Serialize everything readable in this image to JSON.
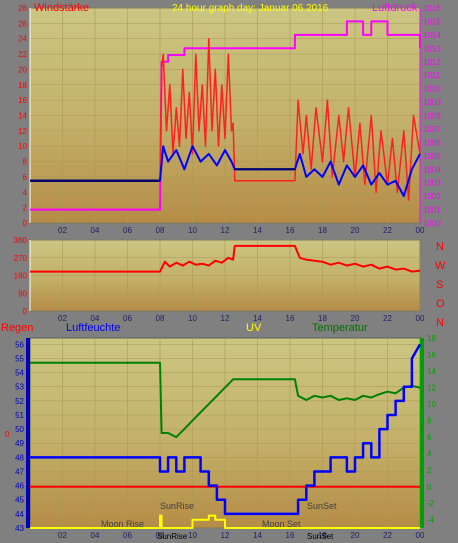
{
  "header": {
    "title": "24 hour graph day: Januar 06 2016",
    "left_label": "Windstärke",
    "right_label": "Luftdruck"
  },
  "wind_dir_labels": [
    "N",
    "W",
    "S",
    "O",
    "N"
  ],
  "bottom_labels": {
    "regen": "Regen",
    "luftfeuchte": "Luftfeuchte",
    "uv": "UV",
    "temperatur": "Temperatur"
  },
  "annotations": {
    "sunrise": "SunRise",
    "sunset": "SunSet",
    "moonrise": "Moon Rise",
    "moonset": "Moon Set",
    "sunrise_marker": "SunRise",
    "sunset_marker": "SunSet",
    "zero_marker": "0"
  },
  "colors": {
    "plot_top": "#c8c07a",
    "plot_bottom": "#b8924a",
    "grid": "#a89a58",
    "wind": "#ff2020",
    "wind_avg": "#0000ff",
    "wind_flat": "#00006a",
    "pressure": "#ff00ff",
    "direction": "#ff0000",
    "humidity": "#0000ff",
    "temperature": "#008000",
    "rain": "#ff0000",
    "uv": "#ffff00",
    "title": "#ffff00",
    "axis_blue": "#0000c0",
    "axis_green": "#00a000"
  },
  "chart_data": [
    {
      "type": "line",
      "name": "wind_pressure",
      "x_ticks": [
        "02",
        "04",
        "06",
        "08",
        "10",
        "12",
        "14",
        "16",
        "18",
        "20",
        "22",
        "00"
      ],
      "y_left_ticks": [
        "0",
        "2",
        "4",
        "6",
        "8",
        "10",
        "12",
        "14",
        "16",
        "18",
        "20",
        "22",
        "24",
        "26",
        "28"
      ],
      "y_right_ticks": [
        "1000",
        "1001",
        "1002",
        "1003",
        "1004",
        "1005",
        "1006",
        "1007",
        "1008",
        "1009",
        "1010",
        "1011",
        "1012",
        "1013",
        "1014",
        "1015",
        "1016"
      ],
      "ylim_left": [
        0,
        28
      ],
      "ylim_right": [
        1000,
        1016
      ],
      "xlim": [
        0,
        24
      ],
      "series": [
        {
          "name": "Windstärke",
          "x": [
            0,
            8,
            8.1,
            8.2,
            8.4,
            8.6,
            8.8,
            9.0,
            9.2,
            9.4,
            9.6,
            9.8,
            10.0,
            10.2,
            10.4,
            10.6,
            10.8,
            11.0,
            11.2,
            11.4,
            11.6,
            11.8,
            12.0,
            12.2,
            12.4,
            12.5,
            12.6,
            16.3,
            16.5,
            16.8,
            17.0,
            17.3,
            17.6,
            18.0,
            18.3,
            18.6,
            19.0,
            19.3,
            19.6,
            20.0,
            20.3,
            20.6,
            21.0,
            21.3,
            21.6,
            22.0,
            22.3,
            22.6,
            23.0,
            23.3,
            23.6,
            24
          ],
          "y": [
            5.5,
            5.5,
            20,
            22,
            12,
            18,
            9,
            15,
            10,
            20,
            11,
            17,
            9,
            22,
            12,
            18,
            10,
            24,
            12,
            20,
            10,
            18,
            11,
            22,
            12,
            13,
            5.5,
            5.5,
            16,
            9,
            14,
            7,
            15,
            8,
            16,
            6,
            14,
            8,
            15,
            6,
            13,
            5,
            14,
            4,
            12,
            5,
            11,
            4,
            12,
            3,
            14,
            9
          ]
        },
        {
          "name": "avg",
          "x": [
            0,
            8,
            8.2,
            8.5,
            9,
            9.5,
            10,
            10.5,
            11,
            11.5,
            12,
            12.4,
            12.6,
            16.3,
            16.6,
            17,
            17.5,
            18,
            18.5,
            19,
            19.5,
            20,
            20.5,
            21,
            21.5,
            22,
            22.5,
            23,
            23.5,
            24
          ],
          "y": [
            5.5,
            5.5,
            10,
            8,
            9.5,
            7,
            10,
            8,
            9,
            7.5,
            9.5,
            8,
            7,
            7,
            9,
            6,
            7,
            6,
            8,
            5,
            7.5,
            6,
            7.5,
            5,
            6.5,
            5,
            5.5,
            3.5,
            7,
            9
          ]
        },
        {
          "name": "Luftdruck",
          "x": [
            0,
            8,
            8.1,
            8.5,
            8.5,
            9.5,
            9.5,
            12.6,
            12.6,
            16.3,
            16.3,
            16.5,
            19.5,
            19.5,
            20.5,
            20.5,
            21,
            21,
            22,
            22,
            23,
            23,
            24,
            24
          ],
          "y": [
            1001,
            1001,
            1012,
            1012,
            1012.5,
            1012.5,
            1013,
            1013,
            1013,
            1013,
            1014,
            1014,
            1014,
            1015,
            1015,
            1014,
            1014,
            1015,
            1015,
            1014,
            1014,
            1014,
            1014,
            1013
          ]
        }
      ]
    },
    {
      "type": "line",
      "name": "wind_direction",
      "x_ticks": [
        "02",
        "04",
        "06",
        "08",
        "10",
        "12",
        "14",
        "16",
        "18",
        "20",
        "22",
        "00"
      ],
      "y_ticks": [
        "0",
        "90",
        "180",
        "270",
        "360"
      ],
      "ylim": [
        0,
        360
      ],
      "xlim": [
        0,
        24
      ],
      "series": [
        {
          "name": "direction",
          "x": [
            0,
            8,
            8.3,
            8.6,
            9,
            9.4,
            9.8,
            10.2,
            10.6,
            11,
            11.4,
            11.8,
            12.2,
            12.5,
            12.6,
            16.3,
            16.6,
            17,
            17.5,
            18,
            18.5,
            19,
            19.5,
            20,
            20.5,
            21,
            21.5,
            22,
            22.5,
            23,
            23.5,
            24
          ],
          "y": [
            200,
            200,
            250,
            225,
            245,
            230,
            250,
            235,
            240,
            230,
            255,
            245,
            270,
            260,
            330,
            330,
            270,
            260,
            255,
            250,
            235,
            245,
            230,
            240,
            225,
            235,
            215,
            225,
            210,
            215,
            200,
            205
          ]
        }
      ]
    },
    {
      "type": "line",
      "name": "humidity_temperature_uv_rain",
      "x_ticks": [
        "02",
        "04",
        "06",
        "08",
        "10",
        "12",
        "14",
        "16",
        "18",
        "20",
        "22",
        "00"
      ],
      "y_left_ticks": [
        "43",
        "44",
        "45",
        "46",
        "47",
        "48",
        "49",
        "50",
        "51",
        "52",
        "53",
        "54",
        "55",
        "56"
      ],
      "y_right_ticks": [
        "-4",
        "-2",
        "0",
        "2",
        "4",
        "6",
        "8",
        "10",
        "12",
        "14",
        "16",
        "18"
      ],
      "ylim_left": [
        43,
        56
      ],
      "ylim_right": [
        -5,
        18
      ],
      "xlim": [
        0,
        24
      ],
      "series": [
        {
          "name": "Luftfeuchte",
          "x": [
            0,
            8,
            8,
            8.5,
            8.5,
            9,
            9,
            9.5,
            9.5,
            10.5,
            10.5,
            11,
            11,
            11.5,
            11.5,
            12,
            12,
            12.5,
            12.5,
            16.5,
            16.5,
            17,
            17,
            17.5,
            17.5,
            18.5,
            18.5,
            19.5,
            19.5,
            20,
            20,
            20.5,
            20.5,
            21,
            21,
            21.5,
            21.5,
            22,
            22,
            22.5,
            22.5,
            23,
            23,
            23.5,
            23.5,
            24
          ],
          "y": [
            48,
            48,
            47,
            47,
            48,
            48,
            47,
            47,
            48,
            48,
            47,
            47,
            46,
            46,
            45,
            45,
            44,
            44,
            44,
            44,
            45,
            45,
            46,
            46,
            47,
            47,
            48,
            48,
            47,
            47,
            48,
            48,
            49,
            49,
            48,
            48,
            50,
            50,
            51,
            51,
            52,
            52,
            53,
            53,
            55,
            56
          ]
        },
        {
          "name": "Temperatur",
          "x": [
            0,
            8,
            8.1,
            8.5,
            9,
            9.5,
            10,
            10.5,
            11,
            11.5,
            12,
            12.5,
            16.3,
            16.5,
            17,
            17.5,
            18,
            18.5,
            19,
            19.5,
            20,
            20.5,
            21,
            21.5,
            22,
            22.5,
            23,
            23.5,
            24
          ],
          "y": [
            15,
            15,
            6.5,
            6.5,
            6,
            7,
            8,
            9,
            10,
            11,
            12,
            13,
            13,
            11,
            10.5,
            11,
            10.8,
            11,
            10.5,
            10.7,
            10.5,
            11,
            10.8,
            11.2,
            11.5,
            11.3,
            12,
            12.2,
            12
          ]
        },
        {
          "name": "UV",
          "x": [
            0,
            8,
            8,
            8.1,
            8.1,
            10,
            10,
            11,
            11,
            11.4,
            11.4,
            12,
            12,
            24
          ],
          "y": [
            -5,
            -5,
            -3.5,
            -3.5,
            -5,
            -5,
            -4,
            -4,
            -3.5,
            -3.5,
            -4,
            -4,
            -5,
            -5
          ]
        },
        {
          "name": "Regen",
          "x": [
            0,
            24
          ],
          "y": [
            0,
            0
          ]
        }
      ]
    }
  ]
}
